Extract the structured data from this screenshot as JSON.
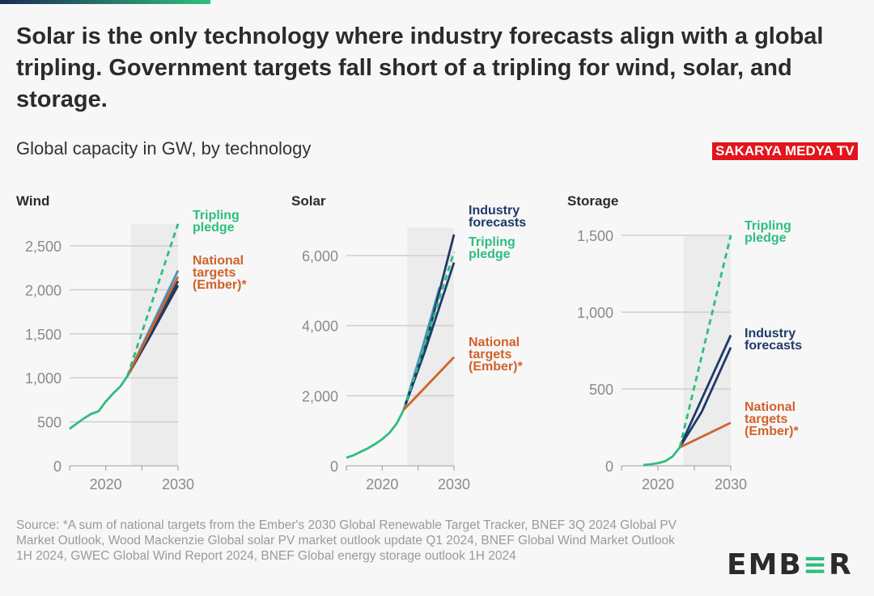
{
  "title": "Solar is the only technology where industry forecasts align with a global tripling. Government targets fall short of a tripling for wind, solar, and storage.",
  "subtitle": "Global capacity in GW, by technology",
  "watermark": "SAKARYA MEDYA TV",
  "footer": "Source: *A sum of national targets from the Ember's 2030 Global Renewable Target Tracker, BNEF 3Q 2024 Global PV Market Outlook, Wood Mackenzie Global solar PV market outlook update Q1 2024, BNEF Global Wind Market Outlook 1H 2024, GWEC Global Wind Report 2024, BNEF Global energy storage outlook 1H 2024",
  "logo": "EMBER",
  "colors": {
    "historical": "#2dbe7e",
    "tripling": "#2dbe7e",
    "industry": "#1f3a68",
    "industry_alt": "#4a90c0",
    "national": "#d0622a",
    "shade": "#ececec",
    "grid": "#cfcfcf",
    "ticks": "#8a8a8a"
  },
  "chart_data": [
    {
      "type": "line",
      "title": "Wind",
      "xlim": [
        2015,
        2030
      ],
      "ylim": [
        0,
        2750
      ],
      "yticks": [
        0,
        500,
        1000,
        1500,
        2000,
        2500
      ],
      "ytick_labels": [
        "0",
        "500",
        "1,000",
        "1,500",
        "2,000",
        "2,500"
      ],
      "xticks": [
        2020,
        2030
      ],
      "xtick_labels": [
        "2020",
        "2030"
      ],
      "forecast_shade_start": 2023.5,
      "grid": true,
      "series": [
        {
          "role": "historical",
          "x": [
            2015,
            2016,
            2017,
            2018,
            2019,
            2020,
            2021,
            2022,
            2023
          ],
          "y": [
            420,
            480,
            540,
            590,
            620,
            730,
            820,
            900,
            1020
          ]
        },
        {
          "role": "industry_alt",
          "x": [
            2023,
            2030
          ],
          "y": [
            1020,
            2220
          ]
        },
        {
          "role": "industry",
          "x": [
            2023,
            2026,
            2030
          ],
          "y": [
            1020,
            1450,
            2050
          ]
        },
        {
          "role": "industry",
          "x": [
            2023,
            2026,
            2030
          ],
          "y": [
            1020,
            1500,
            2100
          ]
        },
        {
          "role": "national",
          "name": "National targets (Ember)*",
          "x": [
            2023,
            2030
          ],
          "y": [
            1020,
            2150
          ]
        },
        {
          "role": "tripling",
          "name": "Tripling pledge",
          "dashed": true,
          "x": [
            2023,
            2030
          ],
          "y": [
            1020,
            2750
          ]
        }
      ],
      "labels": [
        {
          "text": "Tripling pledge",
          "role": "tripling",
          "lines": [
            "Tripling",
            "pledge"
          ]
        },
        {
          "text": "National targets (Ember)*",
          "role": "national",
          "lines": [
            "National",
            "targets",
            "(Ember)*"
          ]
        }
      ]
    },
    {
      "type": "line",
      "title": "Solar",
      "xlim": [
        2015,
        2030
      ],
      "ylim": [
        0,
        6800
      ],
      "yticks": [
        0,
        2000,
        4000,
        6000
      ],
      "ytick_labels": [
        "0",
        "2,000",
        "4,000",
        "6,000"
      ],
      "xticks": [
        2020,
        2030
      ],
      "xtick_labels": [
        "2020",
        "2030"
      ],
      "forecast_shade_start": 2023.5,
      "grid": true,
      "series": [
        {
          "role": "historical",
          "x": [
            2015,
            2016,
            2017,
            2018,
            2019,
            2020,
            2021,
            2022,
            2023
          ],
          "y": [
            230,
            300,
            400,
            500,
            620,
            760,
            940,
            1200,
            1600
          ]
        },
        {
          "role": "industry_alt",
          "x": [
            2023,
            2025.5,
            2028
          ],
          "y": [
            1600,
            3300,
            5100
          ]
        },
        {
          "role": "industry",
          "x": [
            2023,
            2026,
            2030
          ],
          "y": [
            1600,
            3400,
            6600
          ]
        },
        {
          "role": "industry",
          "x": [
            2023,
            2026,
            2030
          ],
          "y": [
            1600,
            3300,
            5800
          ]
        },
        {
          "role": "tripling",
          "name": "Tripling pledge",
          "dashed": true,
          "x": [
            2023,
            2026,
            2030
          ],
          "y": [
            1600,
            3500,
            6100
          ]
        },
        {
          "role": "national",
          "name": "National targets (Ember)*",
          "x": [
            2023,
            2030
          ],
          "y": [
            1600,
            3100
          ]
        }
      ],
      "labels": [
        {
          "text": "Industry forecasts",
          "role": "industry",
          "lines": [
            "Industry",
            "forecasts"
          ]
        },
        {
          "text": "Tripling pledge",
          "role": "tripling",
          "lines": [
            "Tripling",
            "pledge"
          ]
        },
        {
          "text": "National targets (Ember)*",
          "role": "national",
          "lines": [
            "National",
            "targets",
            "(Ember)*"
          ]
        }
      ]
    },
    {
      "type": "line",
      "title": "Storage",
      "xlim": [
        2015,
        2030
      ],
      "ylim": [
        0,
        1500
      ],
      "yticks": [
        0,
        500,
        1000,
        1500
      ],
      "ytick_labels": [
        "0",
        "500",
        "1,000",
        "1,500"
      ],
      "xticks": [
        2020,
        2030
      ],
      "xtick_labels": [
        "2020",
        "2030"
      ],
      "forecast_shade_start": 2023.5,
      "grid": true,
      "series": [
        {
          "role": "historical",
          "x": [
            2018,
            2019,
            2020,
            2021,
            2022,
            2023
          ],
          "y": [
            5,
            10,
            17,
            30,
            60,
            120
          ]
        },
        {
          "role": "industry",
          "x": [
            2023,
            2030
          ],
          "y": [
            120,
            850
          ]
        },
        {
          "role": "industry",
          "x": [
            2023,
            2026,
            2030
          ],
          "y": [
            120,
            350,
            770
          ]
        },
        {
          "role": "national",
          "name": "National targets (Ember)*",
          "x": [
            2023,
            2030
          ],
          "y": [
            120,
            280
          ]
        },
        {
          "role": "tripling",
          "name": "Tripling pledge",
          "dashed": true,
          "x": [
            2023,
            2030
          ],
          "y": [
            120,
            1500
          ]
        }
      ],
      "labels": [
        {
          "text": "Tripling pledge",
          "role": "tripling",
          "lines": [
            "Tripling",
            "pledge"
          ]
        },
        {
          "text": "Industry forecasts",
          "role": "industry",
          "lines": [
            "Industry",
            "forecasts"
          ]
        },
        {
          "text": "National targets (Ember)*",
          "role": "national",
          "lines": [
            "National",
            "targets",
            "(Ember)*"
          ]
        }
      ]
    }
  ]
}
